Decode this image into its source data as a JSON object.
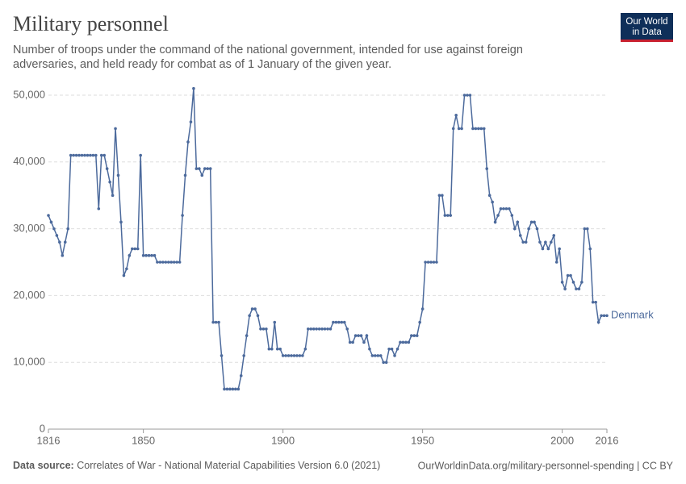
{
  "chart_data": {
    "type": "line",
    "title": "Military personnel",
    "subtitle": [
      "Number of troops under the command of the national government, intended for use against foreign",
      "adversaries, and held ready for combat as of 1 January of the given year."
    ],
    "logo": [
      "Our World",
      "in Data"
    ],
    "source_label": "Data source:",
    "source": "Correlates of War - National Material Capabilities Version 6.0 (2021)",
    "footer_right": "OurWorldinData.org/military-personnel-spending | CC BY",
    "xlim": [
      1816,
      2016
    ],
    "xticks": [
      1816,
      1850,
      1900,
      1950,
      2000,
      2016
    ],
    "ylim": [
      0,
      50000
    ],
    "yticks": [
      0,
      {
        "value": 10000,
        "label": "10,000"
      },
      {
        "value": 20000,
        "label": "20,000"
      },
      {
        "value": 30000,
        "label": "30,000"
      },
      {
        "value": 40000,
        "label": "40,000"
      },
      {
        "value": 50000,
        "label": "50,000"
      }
    ],
    "grid": true,
    "x": [
      1816,
      1817,
      1818,
      1819,
      1820,
      1821,
      1822,
      1823,
      1824,
      1825,
      1826,
      1827,
      1828,
      1829,
      1830,
      1831,
      1832,
      1833,
      1834,
      1835,
      1836,
      1837,
      1838,
      1839,
      1840,
      1841,
      1842,
      1843,
      1844,
      1845,
      1846,
      1847,
      1848,
      1849,
      1850,
      1851,
      1852,
      1853,
      1854,
      1855,
      1856,
      1857,
      1858,
      1859,
      1860,
      1861,
      1862,
      1863,
      1864,
      1865,
      1866,
      1867,
      1868,
      1869,
      1870,
      1871,
      1872,
      1873,
      1874,
      1875,
      1876,
      1877,
      1878,
      1879,
      1880,
      1881,
      1882,
      1883,
      1884,
      1885,
      1886,
      1887,
      1888,
      1889,
      1890,
      1891,
      1892,
      1893,
      1894,
      1895,
      1896,
      1897,
      1898,
      1899,
      1900,
      1901,
      1902,
      1903,
      1904,
      1905,
      1906,
      1907,
      1908,
      1909,
      1910,
      1911,
      1912,
      1913,
      1914,
      1915,
      1916,
      1917,
      1918,
      1919,
      1920,
      1921,
      1922,
      1923,
      1924,
      1925,
      1926,
      1927,
      1928,
      1929,
      1930,
      1931,
      1932,
      1933,
      1934,
      1935,
      1936,
      1937,
      1938,
      1939,
      1940,
      1941,
      1942,
      1943,
      1944,
      1945,
      1946,
      1947,
      1948,
      1949,
      1950,
      1951,
      1952,
      1953,
      1954,
      1955,
      1956,
      1957,
      1958,
      1959,
      1960,
      1961,
      1962,
      1963,
      1964,
      1965,
      1966,
      1967,
      1968,
      1969,
      1970,
      1971,
      1972,
      1973,
      1974,
      1975,
      1976,
      1977,
      1978,
      1979,
      1980,
      1981,
      1982,
      1983,
      1984,
      1985,
      1986,
      1987,
      1988,
      1989,
      1990,
      1991,
      1992,
      1993,
      1994,
      1995,
      1996,
      1997,
      1998,
      1999,
      2000,
      2001,
      2002,
      2003,
      2004,
      2005,
      2006,
      2007,
      2008,
      2009,
      2010,
      2011,
      2012,
      2013,
      2014,
      2015,
      2016
    ],
    "series": [
      {
        "name": "Denmark",
        "color": "#4c6a9c",
        "values": [
          32000,
          31000,
          30000,
          29000,
          28000,
          26000,
          28000,
          30000,
          41000,
          41000,
          41000,
          41000,
          41000,
          41000,
          41000,
          41000,
          41000,
          41000,
          33000,
          41000,
          41000,
          39000,
          37000,
          35000,
          45000,
          38000,
          31000,
          23000,
          24000,
          26000,
          27000,
          27000,
          27000,
          41000,
          26000,
          26000,
          26000,
          26000,
          26000,
          25000,
          25000,
          25000,
          25000,
          25000,
          25000,
          25000,
          25000,
          25000,
          32000,
          38000,
          43000,
          46000,
          51000,
          39000,
          39000,
          38000,
          39000,
          39000,
          39000,
          16000,
          16000,
          16000,
          11000,
          6000,
          6000,
          6000,
          6000,
          6000,
          6000,
          8000,
          11000,
          14000,
          17000,
          18000,
          18000,
          17000,
          15000,
          15000,
          15000,
          12000,
          12000,
          16000,
          12000,
          12000,
          11000,
          11000,
          11000,
          11000,
          11000,
          11000,
          11000,
          11000,
          12000,
          15000,
          15000,
          15000,
          15000,
          15000,
          15000,
          15000,
          15000,
          15000,
          16000,
          16000,
          16000,
          16000,
          16000,
          15000,
          13000,
          13000,
          14000,
          14000,
          14000,
          13000,
          14000,
          12000,
          11000,
          11000,
          11000,
          11000,
          10000,
          10000,
          12000,
          12000,
          11000,
          12000,
          13000,
          13000,
          13000,
          13000,
          14000,
          14000,
          14000,
          16000,
          18000,
          25000,
          25000,
          25000,
          25000,
          25000,
          35000,
          35000,
          32000,
          32000,
          32000,
          45000,
          47000,
          45000,
          45000,
          50000,
          50000,
          50000,
          45000,
          45000,
          45000,
          45000,
          45000,
          39000,
          35000,
          34000,
          31000,
          32000,
          33000,
          33000,
          33000,
          33000,
          32000,
          30000,
          31000,
          29000,
          28000,
          28000,
          30000,
          31000,
          31000,
          30000,
          28000,
          27000,
          28000,
          27000,
          28000,
          29000,
          25000,
          27000,
          22000,
          21000,
          23000,
          23000,
          22000,
          21000,
          21000,
          22000,
          30000,
          30000,
          27000,
          19000,
          19000,
          16000,
          17000,
          17000,
          17000
        ]
      }
    ]
  }
}
